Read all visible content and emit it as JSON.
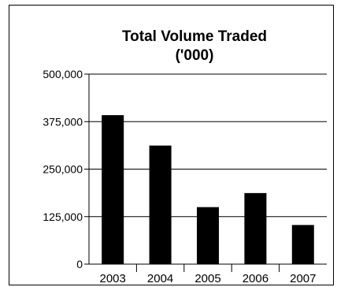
{
  "chart_data": {
    "type": "bar",
    "title": "Total Volume Traded",
    "subtitle": "('000)",
    "categories": [
      "2003",
      "2004",
      "2005",
      "2006",
      "2007"
    ],
    "values": [
      392000,
      312000,
      150000,
      187000,
      103000
    ],
    "ylim": [
      0,
      500000
    ],
    "yticks": [
      0,
      125000,
      250000,
      375000,
      500000
    ],
    "ytick_labels": [
      "0",
      "125,000",
      "250,000",
      "375,000",
      "500,000"
    ],
    "xlabel": "",
    "ylabel": "",
    "grid": true,
    "legend": "none",
    "bar_color": "#000000"
  }
}
